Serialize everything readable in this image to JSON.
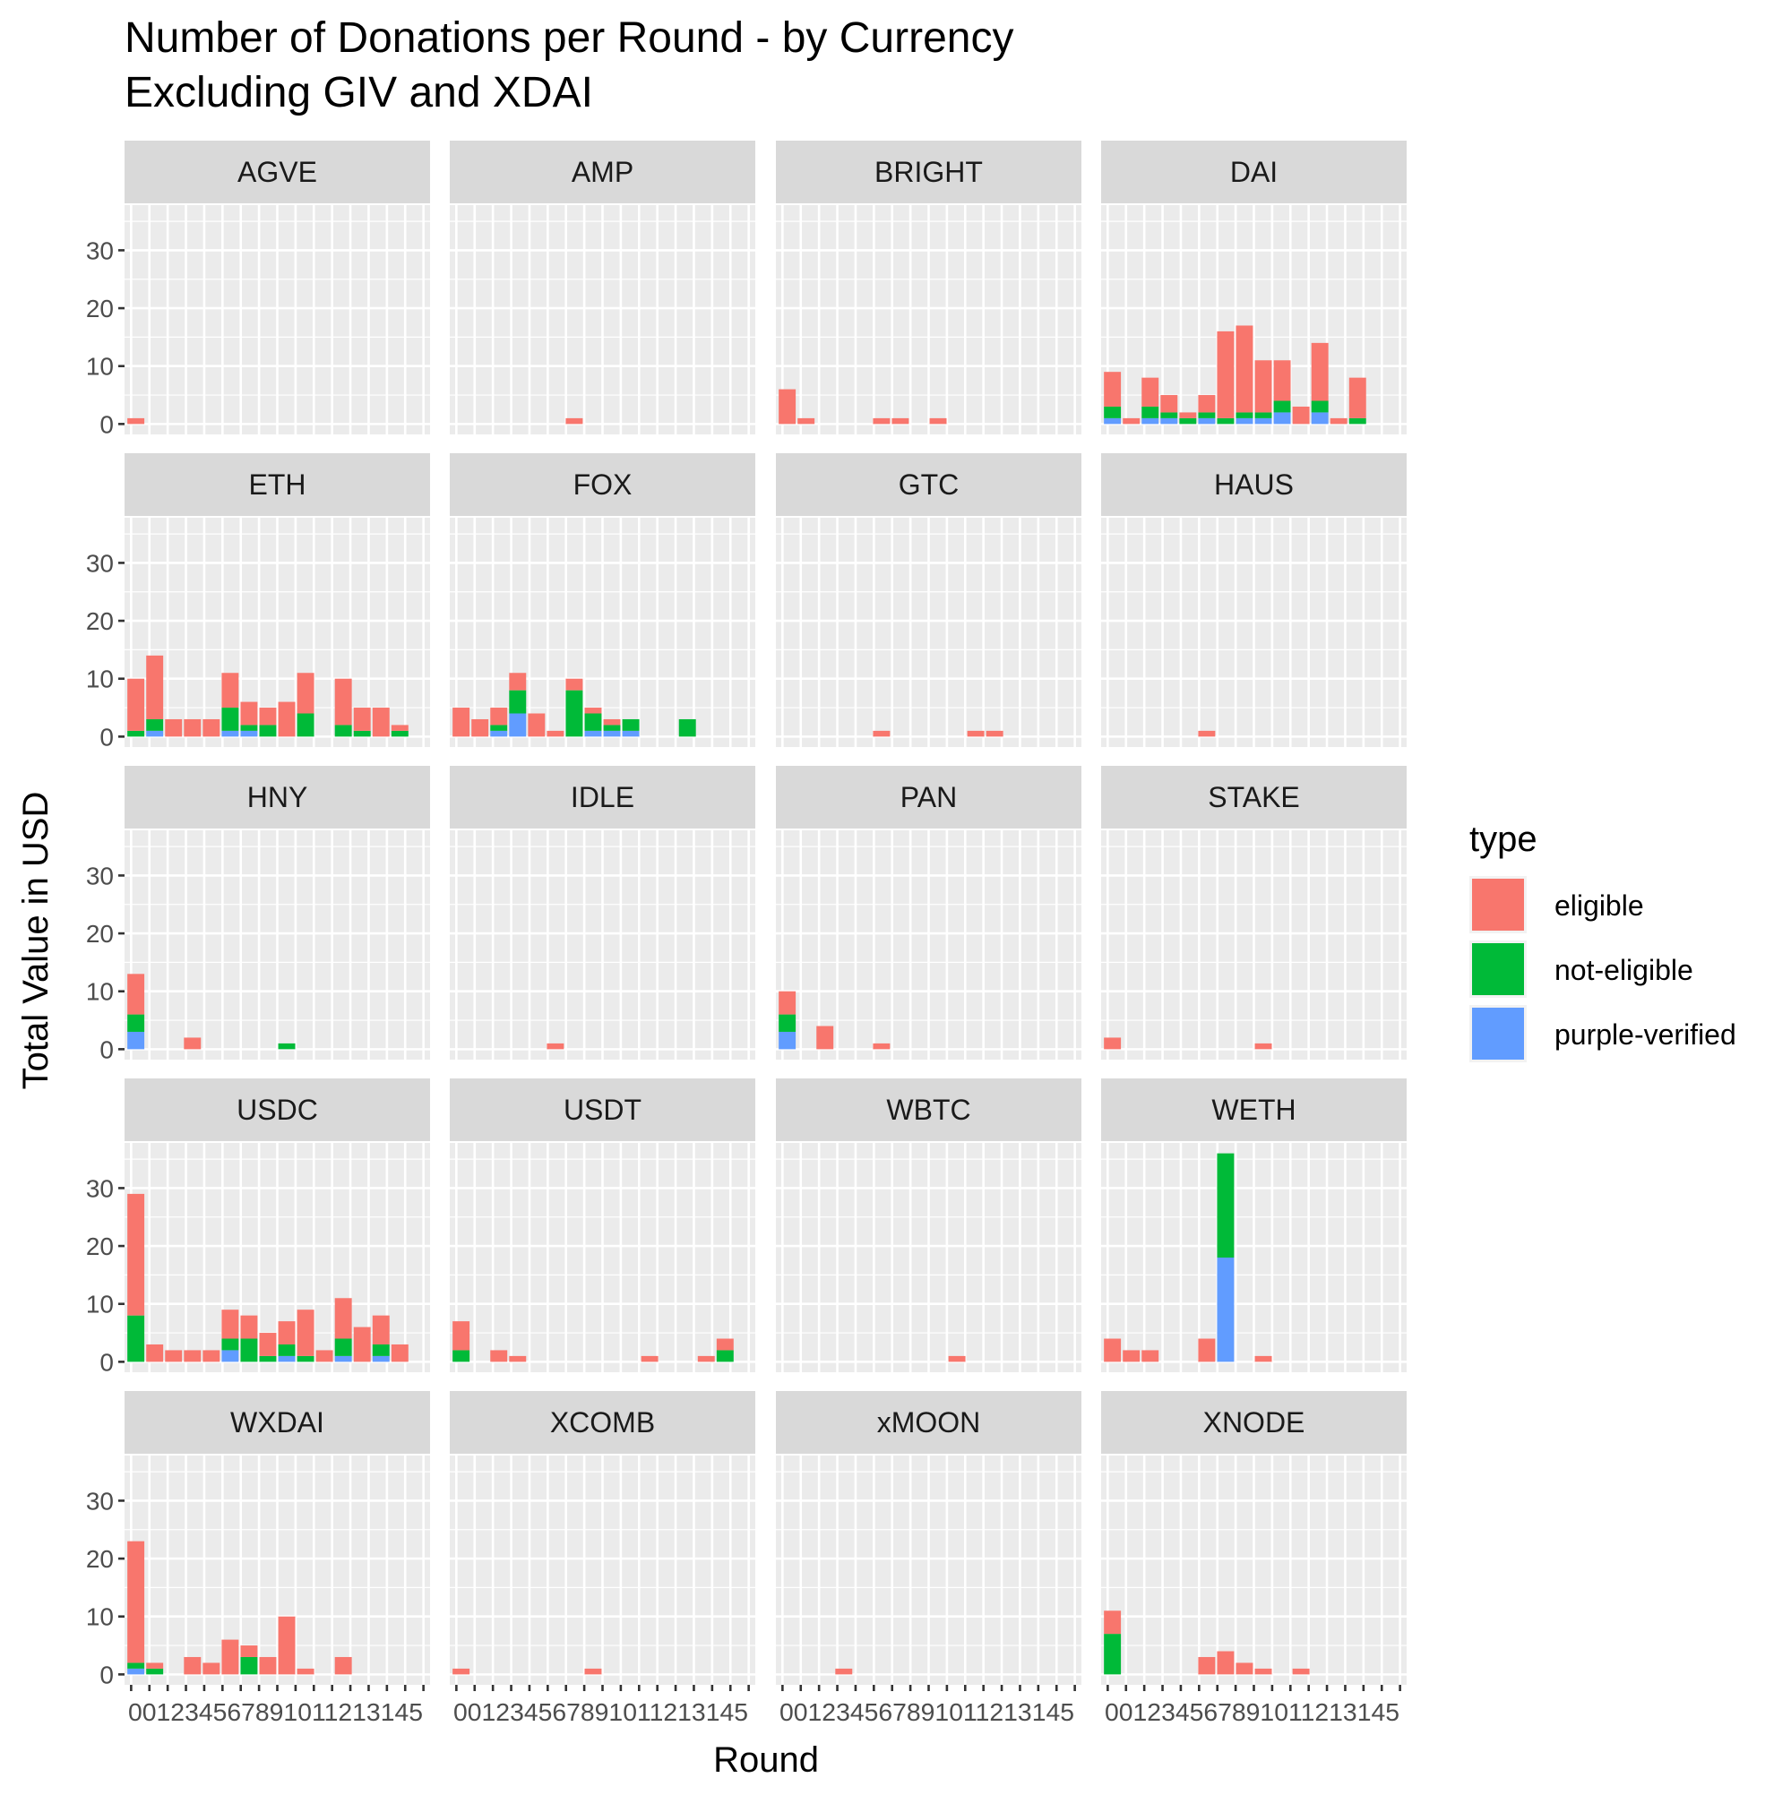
{
  "chart_data": {
    "type": "bar",
    "stacked": true,
    "faceted": true,
    "title_lines": [
      "Number of Donations per Round - by Currency",
      "Excluding GIV and XDAI"
    ],
    "xlabel": "Round",
    "ylabel": "Total Value in USD",
    "ylim": [
      -1.8,
      37.8
    ],
    "y_ticks": [
      0,
      10,
      20,
      30
    ],
    "x_ticks": [
      "0",
      "01",
      "1",
      "2",
      "3",
      "4",
      "5",
      "6",
      "7",
      "8",
      "9",
      "10",
      "11",
      "12",
      "13",
      "14",
      "15"
    ],
    "x_tick_label_text": "001234567891011213145",
    "legend": {
      "title": "type",
      "position": "right",
      "entries": [
        {
          "key": "eligible",
          "label": "eligible",
          "color": "#F8766D"
        },
        {
          "key": "not_eligible",
          "label": "not-eligible",
          "color": "#00BA38"
        },
        {
          "key": "purple_verified",
          "label": "purple-verified",
          "color": "#619CFF"
        }
      ]
    },
    "panels": [
      {
        "name": "AGVE",
        "bars": [
          {
            "x": 0,
            "eligible": 1
          }
        ]
      },
      {
        "name": "AMP",
        "bars": [
          {
            "x": 6,
            "eligible": 1
          }
        ]
      },
      {
        "name": "BRIGHT",
        "bars": [
          {
            "x": 0,
            "eligible": 6
          },
          {
            "x": 1,
            "eligible": 1
          },
          {
            "x": 5,
            "eligible": 1
          },
          {
            "x": 6,
            "eligible": 1
          },
          {
            "x": 8,
            "eligible": 1
          }
        ]
      },
      {
        "name": "DAI",
        "bars": [
          {
            "x": 0,
            "eligible": 6,
            "not_eligible": 2,
            "purple_verified": 1
          },
          {
            "x": 1,
            "eligible": 1
          },
          {
            "x": 2,
            "eligible": 5,
            "not_eligible": 2,
            "purple_verified": 1
          },
          {
            "x": 3,
            "eligible": 3,
            "not_eligible": 1,
            "purple_verified": 1
          },
          {
            "x": 4,
            "eligible": 1,
            "not_eligible": 1
          },
          {
            "x": 5,
            "eligible": 3,
            "not_eligible": 1,
            "purple_verified": 1
          },
          {
            "x": 6,
            "eligible": 15,
            "not_eligible": 1
          },
          {
            "x": 7,
            "eligible": 15,
            "not_eligible": 1,
            "purple_verified": 1
          },
          {
            "x": 8,
            "eligible": 9,
            "not_eligible": 1,
            "purple_verified": 1
          },
          {
            "x": 9,
            "eligible": 7,
            "not_eligible": 2,
            "purple_verified": 2
          },
          {
            "x": 10,
            "eligible": 3
          },
          {
            "x": 11,
            "eligible": 10,
            "not_eligible": 2,
            "purple_verified": 2
          },
          {
            "x": 12,
            "eligible": 1
          },
          {
            "x": 13,
            "eligible": 7,
            "not_eligible": 1
          }
        ]
      },
      {
        "name": "ETH",
        "bars": [
          {
            "x": 0,
            "eligible": 9,
            "not_eligible": 1
          },
          {
            "x": 1,
            "eligible": 11,
            "not_eligible": 2,
            "purple_verified": 1
          },
          {
            "x": 2,
            "eligible": 3
          },
          {
            "x": 3,
            "eligible": 3
          },
          {
            "x": 4,
            "eligible": 3
          },
          {
            "x": 5,
            "eligible": 6,
            "not_eligible": 4,
            "purple_verified": 1
          },
          {
            "x": 6,
            "eligible": 4,
            "not_eligible": 1,
            "purple_verified": 1
          },
          {
            "x": 7,
            "eligible": 3,
            "not_eligible": 2
          },
          {
            "x": 8,
            "eligible": 6
          },
          {
            "x": 9,
            "eligible": 7,
            "not_eligible": 4
          },
          {
            "x": 11,
            "eligible": 8,
            "not_eligible": 2
          },
          {
            "x": 12,
            "eligible": 4,
            "not_eligible": 1
          },
          {
            "x": 13,
            "eligible": 5
          },
          {
            "x": 14,
            "eligible": 1,
            "not_eligible": 1
          }
        ]
      },
      {
        "name": "FOX",
        "bars": [
          {
            "x": 0,
            "eligible": 5
          },
          {
            "x": 1,
            "eligible": 3
          },
          {
            "x": 2,
            "eligible": 3,
            "not_eligible": 1,
            "purple_verified": 1
          },
          {
            "x": 3,
            "eligible": 3,
            "not_eligible": 4,
            "purple_verified": 4
          },
          {
            "x": 4,
            "eligible": 4
          },
          {
            "x": 5,
            "eligible": 1
          },
          {
            "x": 6,
            "eligible": 2,
            "not_eligible": 8
          },
          {
            "x": 7,
            "eligible": 1,
            "not_eligible": 3,
            "purple_verified": 1
          },
          {
            "x": 8,
            "eligible": 1,
            "not_eligible": 1,
            "purple_verified": 1
          },
          {
            "x": 9,
            "not_eligible": 2,
            "purple_verified": 1
          },
          {
            "x": 12,
            "not_eligible": 3
          }
        ]
      },
      {
        "name": "GTC",
        "bars": [
          {
            "x": 5,
            "eligible": 1
          },
          {
            "x": 10,
            "eligible": 1
          },
          {
            "x": 11,
            "eligible": 1
          }
        ]
      },
      {
        "name": "HAUS",
        "bars": [
          {
            "x": 5,
            "eligible": 1
          }
        ]
      },
      {
        "name": "HNY",
        "bars": [
          {
            "x": 0,
            "eligible": 7,
            "not_eligible": 3,
            "purple_verified": 3
          },
          {
            "x": 3,
            "eligible": 2
          },
          {
            "x": 8,
            "not_eligible": 1
          }
        ]
      },
      {
        "name": "IDLE",
        "bars": [
          {
            "x": 5,
            "eligible": 1
          }
        ]
      },
      {
        "name": "PAN",
        "bars": [
          {
            "x": 0,
            "eligible": 4,
            "not_eligible": 3,
            "purple_verified": 3
          },
          {
            "x": 2,
            "eligible": 4
          },
          {
            "x": 5,
            "eligible": 1
          }
        ]
      },
      {
        "name": "STAKE",
        "bars": [
          {
            "x": 0,
            "eligible": 2
          },
          {
            "x": 8,
            "eligible": 1
          }
        ]
      },
      {
        "name": "USDC",
        "bars": [
          {
            "x": 0,
            "eligible": 21,
            "not_eligible": 8
          },
          {
            "x": 1,
            "eligible": 3
          },
          {
            "x": 2,
            "eligible": 2
          },
          {
            "x": 3,
            "eligible": 2
          },
          {
            "x": 4,
            "eligible": 2
          },
          {
            "x": 5,
            "eligible": 5,
            "not_eligible": 2,
            "purple_verified": 2
          },
          {
            "x": 6,
            "eligible": 4,
            "not_eligible": 4
          },
          {
            "x": 7,
            "eligible": 4,
            "not_eligible": 1
          },
          {
            "x": 8,
            "eligible": 4,
            "not_eligible": 2,
            "purple_verified": 1
          },
          {
            "x": 9,
            "eligible": 8,
            "not_eligible": 1
          },
          {
            "x": 10,
            "eligible": 2
          },
          {
            "x": 11,
            "eligible": 7,
            "not_eligible": 3,
            "purple_verified": 1
          },
          {
            "x": 12,
            "eligible": 6
          },
          {
            "x": 13,
            "eligible": 5,
            "not_eligible": 2,
            "purple_verified": 1
          },
          {
            "x": 14,
            "eligible": 3
          }
        ]
      },
      {
        "name": "USDT",
        "bars": [
          {
            "x": 0,
            "eligible": 5,
            "not_eligible": 2
          },
          {
            "x": 2,
            "eligible": 2
          },
          {
            "x": 3,
            "eligible": 1
          },
          {
            "x": 10,
            "eligible": 1
          },
          {
            "x": 13,
            "eligible": 1
          },
          {
            "x": 14,
            "eligible": 2,
            "not_eligible": 2
          }
        ]
      },
      {
        "name": "WBTC",
        "bars": [
          {
            "x": 9,
            "eligible": 1
          }
        ]
      },
      {
        "name": "WETH",
        "bars": [
          {
            "x": 0,
            "eligible": 4
          },
          {
            "x": 1,
            "eligible": 2
          },
          {
            "x": 2,
            "eligible": 2
          },
          {
            "x": 5,
            "eligible": 4
          },
          {
            "x": 6,
            "not_eligible": 18,
            "purple_verified": 18
          },
          {
            "x": 8,
            "eligible": 1
          }
        ]
      },
      {
        "name": "WXDAI",
        "bars": [
          {
            "x": 0,
            "eligible": 21,
            "not_eligible": 1,
            "purple_verified": 1
          },
          {
            "x": 1,
            "eligible": 1,
            "not_eligible": 1
          },
          {
            "x": 3,
            "eligible": 3
          },
          {
            "x": 4,
            "eligible": 2
          },
          {
            "x": 5,
            "eligible": 6
          },
          {
            "x": 6,
            "eligible": 2,
            "not_eligible": 3
          },
          {
            "x": 7,
            "eligible": 3
          },
          {
            "x": 8,
            "eligible": 10
          },
          {
            "x": 9,
            "eligible": 1
          },
          {
            "x": 11,
            "eligible": 3
          }
        ]
      },
      {
        "name": "XCOMB",
        "bars": [
          {
            "x": 0,
            "eligible": 1
          },
          {
            "x": 7,
            "eligible": 1
          }
        ]
      },
      {
        "name": "xMOON",
        "bars": [
          {
            "x": 3,
            "eligible": 1
          }
        ]
      },
      {
        "name": "XNODE",
        "bars": [
          {
            "x": 0,
            "eligible": 4,
            "not_eligible": 7
          },
          {
            "x": 5,
            "eligible": 3
          },
          {
            "x": 6,
            "eligible": 4
          },
          {
            "x": 7,
            "eligible": 2
          },
          {
            "x": 8,
            "eligible": 1
          },
          {
            "x": 10,
            "eligible": 1
          }
        ]
      }
    ]
  }
}
